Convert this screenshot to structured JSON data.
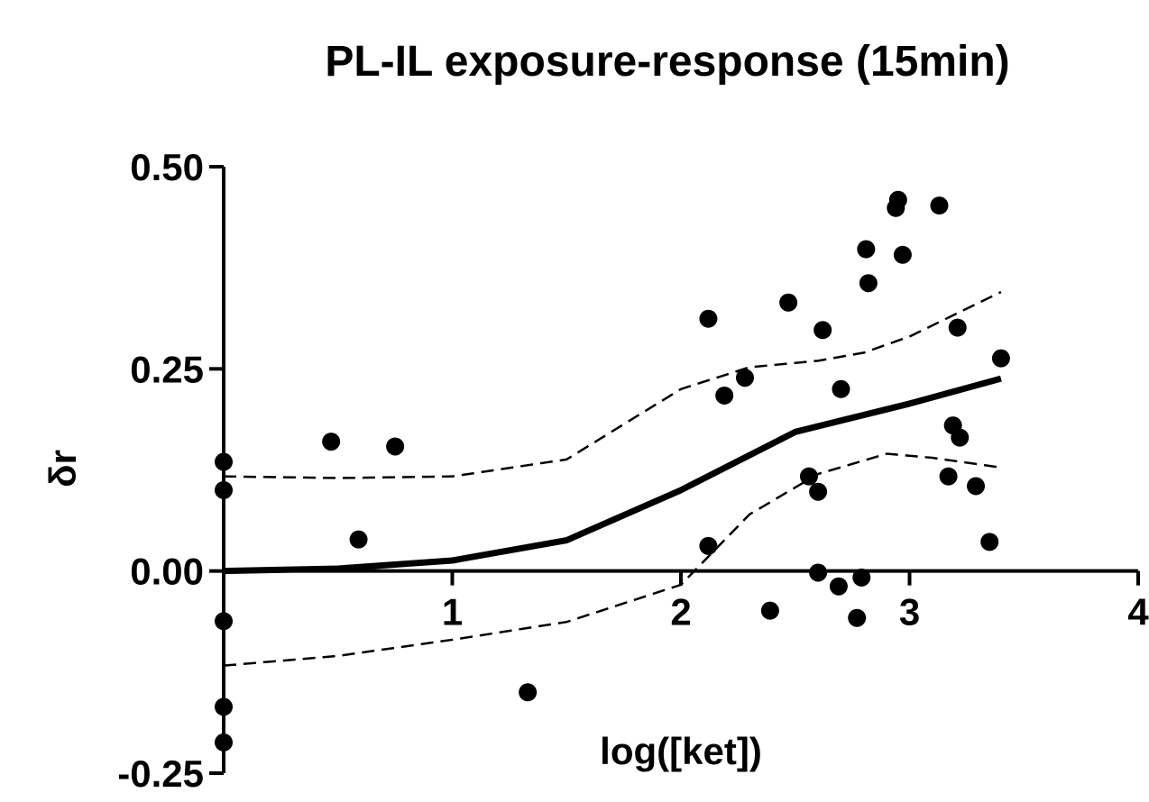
{
  "chart_data": {
    "type": "scatter",
    "title": "PL-IL exposure-response (15min)",
    "xlabel": "log([ket])",
    "ylabel": "δr",
    "xlim": [
      0,
      4
    ],
    "ylim": [
      -0.25,
      0.5
    ],
    "xticks": [
      1,
      2,
      3,
      4
    ],
    "yticks": [
      {
        "value": 0.5,
        "label": "0.50"
      },
      {
        "value": 0.25,
        "label": "0.25"
      },
      {
        "value": 0,
        "label": "0.00"
      },
      {
        "value": -0.25,
        "label": "-0.25"
      }
    ],
    "grid": false,
    "series": [
      {
        "style": "points",
        "color": "#000000",
        "x": [
          0,
          0,
          0,
          0,
          0,
          0.47,
          0.59,
          0.75,
          1.33,
          2.12,
          2.12,
          2.19,
          2.28,
          2.39,
          2.47,
          2.56,
          2.6,
          2.6,
          2.62,
          2.69,
          2.7,
          2.77,
          2.79,
          2.81,
          2.82,
          2.94,
          2.95,
          2.97,
          3.13,
          3.19,
          3.17,
          3.22,
          3.21,
          3.29,
          3.35,
          3.4
        ],
        "values": [
          0.135,
          0.1,
          -0.062,
          -0.168,
          -0.212,
          0.16,
          0.039,
          0.154,
          -0.15,
          0.312,
          0.031,
          0.217,
          0.239,
          -0.049,
          0.332,
          0.117,
          0.098,
          -0.002,
          0.298,
          -0.019,
          0.225,
          -0.058,
          -0.008,
          0.398,
          0.356,
          0.449,
          0.459,
          0.391,
          0.452,
          0.18,
          0.117,
          0.165,
          0.301,
          0.105,
          0.036,
          0.263
        ]
      },
      {
        "style": "solid",
        "color": "#000000",
        "x": [
          0,
          0.5,
          1,
          1.5,
          2,
          2.5,
          3,
          3.4
        ],
        "values": [
          0,
          0.003,
          0.013,
          0.038,
          0.1,
          0.172,
          0.207,
          0.238
        ]
      },
      {
        "style": "dashed",
        "color": "#000000",
        "x": [
          0,
          0.5,
          1,
          1.5,
          2,
          2.3,
          2.6,
          2.8,
          3,
          3.4
        ],
        "values": [
          0.117,
          0.115,
          0.117,
          0.138,
          0.225,
          0.252,
          0.26,
          0.27,
          0.29,
          0.345
        ]
      },
      {
        "style": "dashed",
        "color": "#000000",
        "x": [
          0,
          0.5,
          1,
          1.5,
          2,
          2.3,
          2.6,
          2.9,
          3.1,
          3.4
        ],
        "values": [
          -0.117,
          -0.105,
          -0.085,
          -0.063,
          -0.017,
          0.07,
          0.12,
          0.145,
          0.14,
          0.128
        ]
      }
    ]
  }
}
